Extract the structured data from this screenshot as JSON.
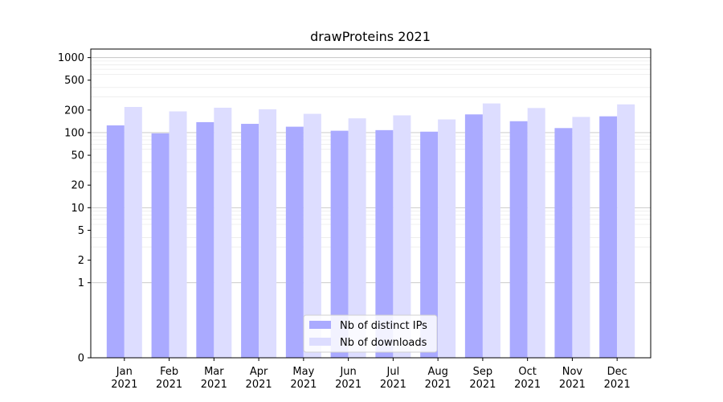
{
  "chart_data": {
    "type": "bar",
    "title": "drawProteins 2021",
    "xlabel": "",
    "ylabel": "",
    "yscale": "symlog",
    "ylim": [
      0,
      1300
    ],
    "yticks": [
      0,
      1,
      2,
      5,
      10,
      20,
      50,
      100,
      200,
      500,
      1000
    ],
    "grid": true,
    "legend_position": "lower center",
    "categories": [
      [
        "Jan",
        "2021"
      ],
      [
        "Feb",
        "2021"
      ],
      [
        "Mar",
        "2021"
      ],
      [
        "Apr",
        "2021"
      ],
      [
        "May",
        "2021"
      ],
      [
        "Jun",
        "2021"
      ],
      [
        "Jul",
        "2021"
      ],
      [
        "Aug",
        "2021"
      ],
      [
        "Sep",
        "2021"
      ],
      [
        "Oct",
        "2021"
      ],
      [
        "Nov",
        "2021"
      ],
      [
        "Dec",
        "2021"
      ]
    ],
    "series": [
      {
        "name": "Nb of distinct IPs",
        "color": "#aaaaff",
        "values": [
          125,
          98,
          138,
          131,
          120,
          106,
          108,
          103,
          175,
          142,
          115,
          165
        ]
      },
      {
        "name": "Nb of downloads",
        "color": "#ddddff",
        "values": [
          220,
          192,
          215,
          205,
          178,
          155,
          170,
          150,
          245,
          213,
          162,
          238
        ]
      }
    ]
  }
}
